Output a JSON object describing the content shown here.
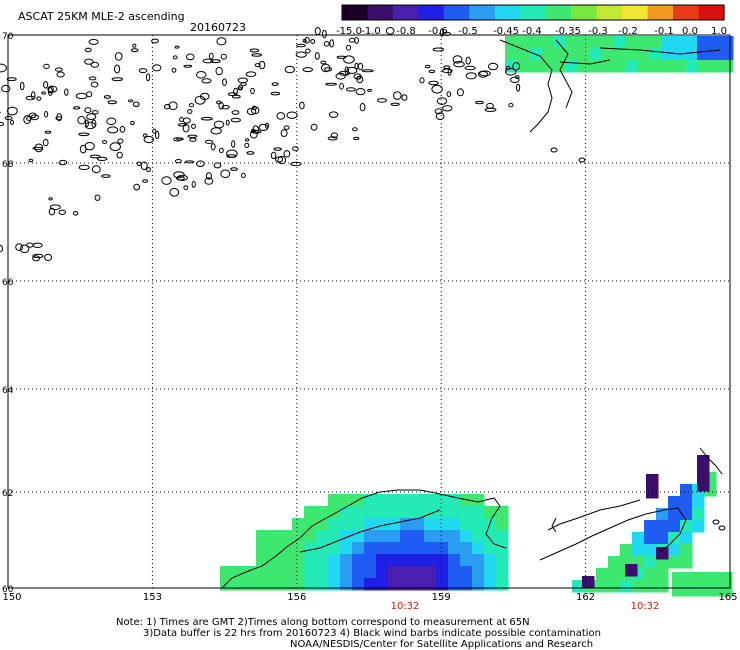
{
  "header": {
    "title": "ASCAT 25KM MLE-2 ascending",
    "date": "20160723"
  },
  "colorbar": {
    "labels": [
      "-15.0",
      "-1.0",
      "-0.8",
      "-0.6",
      "-0.5",
      "-0.45",
      "-0.4",
      "-0.35",
      "-0.3",
      "-0.2",
      "-0.1",
      "0.0",
      "1.0"
    ],
    "colors": [
      "#1a0026",
      "#3a0e6a",
      "#4a1fb0",
      "#1f1fe6",
      "#1e5cf2",
      "#2a9cf2",
      "#22d8f0",
      "#24eab8",
      "#3ee870",
      "#78e840",
      "#c2e834",
      "#f2e834",
      "#f29a20",
      "#e83a14",
      "#d81010"
    ]
  },
  "map": {
    "lon_labels": [
      "150",
      "153",
      "156",
      "159",
      "162",
      "165"
    ],
    "lat_labels": [
      "70",
      "68",
      "66",
      "64",
      "62",
      "60"
    ],
    "time_labels": [
      "10:32",
      "10:32"
    ],
    "time_color": "#cc2200"
  },
  "footer": {
    "line1": "Note: 1) Times are GMT 2)Times along bottom correspond to measurement at 65N",
    "line2": "3)Data buffer is 22 hrs from 20160723 4) Black wind barbs indicate possible contamination",
    "line3": "NOAA/NESDIS/Center for Satellite Applications and Research"
  }
}
